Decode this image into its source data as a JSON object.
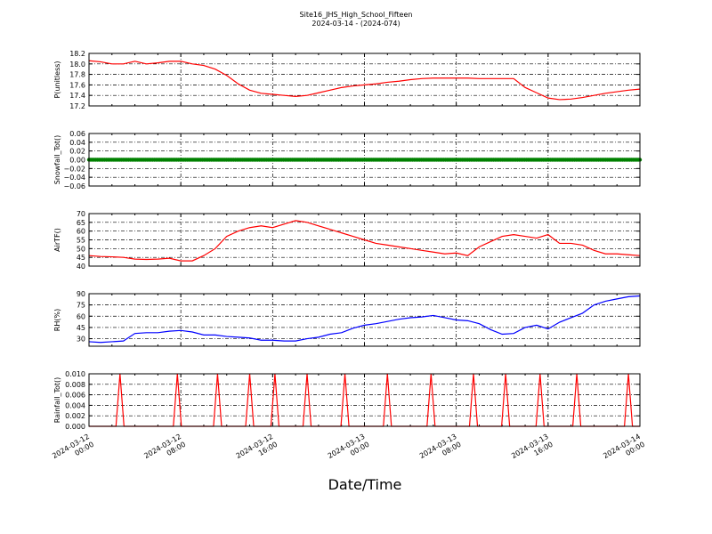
{
  "figure": {
    "title_line1": "Site16_JHS_High_School_Fifteen",
    "title_line2": "2024-03-14 - (2024-074)",
    "xlabel": "Date/Time"
  },
  "chart_data": [
    {
      "type": "line",
      "ylabel": "P(unitless)",
      "ylim": [
        17.2,
        18.2
      ],
      "yticks": [
        17.2,
        17.4,
        17.6,
        17.8,
        18.0,
        18.2
      ],
      "ytick_labels": [
        "17.2",
        "17.4",
        "17.6",
        "17.8",
        "18.0",
        "18.2"
      ],
      "color": "#ff0000",
      "x_hours": [
        0,
        1,
        2,
        3,
        4,
        5,
        6,
        7,
        8,
        9,
        10,
        11,
        12,
        13,
        14,
        15,
        16,
        17,
        18,
        19,
        20,
        21,
        22,
        23,
        24,
        25,
        26,
        27,
        28,
        29,
        30,
        31,
        32,
        33,
        34,
        35,
        36,
        37,
        38,
        39,
        40,
        41,
        42,
        43,
        44,
        45,
        46,
        47,
        48
      ],
      "values": [
        18.06,
        18.04,
        18.0,
        18.0,
        18.05,
        18.0,
        18.02,
        18.05,
        18.05,
        18.0,
        17.97,
        17.9,
        17.78,
        17.62,
        17.5,
        17.44,
        17.42,
        17.4,
        17.38,
        17.4,
        17.45,
        17.5,
        17.55,
        17.58,
        17.6,
        17.62,
        17.65,
        17.67,
        17.7,
        17.72,
        17.73,
        17.73,
        17.73,
        17.73,
        17.72,
        17.72,
        17.72,
        17.72,
        17.55,
        17.45,
        17.35,
        17.32,
        17.33,
        17.36,
        17.4,
        17.44,
        17.47,
        17.5,
        17.52
      ]
    },
    {
      "type": "scatter",
      "ylabel": "Snowfall_Tot()",
      "ylim": [
        -0.06,
        0.06
      ],
      "yticks": [
        -0.06,
        -0.04,
        -0.02,
        0.0,
        0.02,
        0.04,
        0.06
      ],
      "ytick_labels": [
        "−0.06",
        "−0.04",
        "−0.02",
        "0.00",
        "0.02",
        "0.04",
        "0.06"
      ],
      "color": "#008000",
      "x_hours": [
        0,
        1,
        2,
        3,
        4,
        5,
        6,
        7,
        8,
        9,
        10,
        11,
        12,
        13,
        14,
        15,
        16,
        17,
        18,
        19,
        20,
        21,
        22,
        23,
        24,
        25,
        26,
        27,
        28,
        29,
        30,
        31,
        32,
        33,
        34,
        35,
        36,
        37,
        38,
        39,
        40,
        41,
        42,
        43,
        44,
        45,
        46,
        47,
        48
      ],
      "values": [
        0,
        0,
        0,
        0,
        0,
        0,
        0,
        0,
        0,
        0,
        0,
        0,
        0,
        0,
        0,
        0,
        0,
        0,
        0,
        0,
        0,
        0,
        0,
        0,
        0,
        0,
        0,
        0,
        0,
        0,
        0,
        0,
        0,
        0,
        0,
        0,
        0,
        0,
        0,
        0,
        0,
        0,
        0,
        0,
        0,
        0,
        0,
        0,
        0
      ]
    },
    {
      "type": "line",
      "ylabel": "AirTF()",
      "ylim": [
        40,
        70
      ],
      "yticks": [
        40,
        45,
        50,
        55,
        60,
        65,
        70
      ],
      "ytick_labels": [
        "40",
        "45",
        "50",
        "55",
        "60",
        "65",
        "70"
      ],
      "color": "#ff0000",
      "x_hours": [
        0,
        1,
        2,
        3,
        4,
        5,
        6,
        7,
        8,
        9,
        10,
        11,
        12,
        13,
        14,
        15,
        16,
        17,
        18,
        19,
        20,
        21,
        22,
        23,
        24,
        25,
        26,
        27,
        28,
        29,
        30,
        31,
        32,
        33,
        34,
        35,
        36,
        37,
        38,
        39,
        40,
        41,
        42,
        43,
        44,
        45,
        46,
        47,
        48
      ],
      "values": [
        46,
        45.5,
        45.3,
        45,
        44,
        43.8,
        44,
        44.5,
        43,
        43,
        46,
        50,
        57,
        60,
        62,
        63,
        62,
        64,
        66,
        65,
        63,
        61,
        59,
        57,
        55,
        53,
        52,
        51,
        50,
        49,
        48,
        47,
        47.5,
        46,
        51,
        54,
        57,
        58,
        57,
        56,
        58,
        53,
        53,
        52,
        49,
        47,
        47,
        46.5,
        46
      ]
    },
    {
      "type": "line",
      "ylabel": "RH(%)",
      "ylim": [
        20,
        90
      ],
      "yticks": [
        30,
        45,
        60,
        75,
        90
      ],
      "ytick_labels": [
        "30",
        "45",
        "60",
        "75",
        "90"
      ],
      "color": "#0000ff",
      "x_hours": [
        0,
        1,
        2,
        3,
        4,
        5,
        6,
        7,
        8,
        9,
        10,
        11,
        12,
        13,
        14,
        15,
        16,
        17,
        18,
        19,
        20,
        21,
        22,
        23,
        24,
        25,
        26,
        27,
        28,
        29,
        30,
        31,
        32,
        33,
        34,
        35,
        36,
        37,
        38,
        39,
        40,
        41,
        42,
        43,
        44,
        45,
        46,
        47,
        48
      ],
      "values": [
        26,
        25,
        26,
        27,
        37,
        38,
        38,
        40,
        41,
        39,
        35,
        35,
        33,
        32,
        31,
        28,
        28,
        27,
        27,
        30,
        32,
        36,
        38,
        44,
        48,
        50,
        53,
        56,
        58,
        59,
        61,
        58,
        55,
        54,
        50,
        42,
        36,
        37,
        45,
        48,
        43,
        52,
        58,
        64,
        75,
        80,
        83,
        86,
        87
      ]
    },
    {
      "type": "line",
      "ylabel": "Rainfall_Tot()",
      "ylim": [
        0.0,
        0.01
      ],
      "yticks": [
        0.0,
        0.002,
        0.004,
        0.006,
        0.008,
        0.01
      ],
      "ytick_labels": [
        "0.000",
        "0.002",
        "0.004",
        "0.006",
        "0.008",
        "0.010"
      ],
      "color": "#ff0000",
      "spike_hours": [
        2.7,
        7.7,
        11.2,
        14.0,
        16.2,
        19.0,
        22.3,
        26.0,
        29.8,
        33.5,
        36.3,
        39.3,
        42.5,
        47.0
      ],
      "spike_value": 0.01,
      "spike_halfwidth_hours": 0.35
    }
  ],
  "x_axis": {
    "range_hours": [
      0,
      48
    ],
    "ticks_hours": [
      0,
      8,
      16,
      24,
      32,
      40,
      48
    ],
    "tick_labels": [
      [
        "2024-03-12",
        "00:00"
      ],
      [
        "2024-03-12",
        "08:00"
      ],
      [
        "2024-03-12",
        "16:00"
      ],
      [
        "2024-03-13",
        "00:00"
      ],
      [
        "2024-03-13",
        "08:00"
      ],
      [
        "2024-03-13",
        "16:00"
      ],
      [
        "2024-03-14",
        "00:00"
      ]
    ]
  }
}
